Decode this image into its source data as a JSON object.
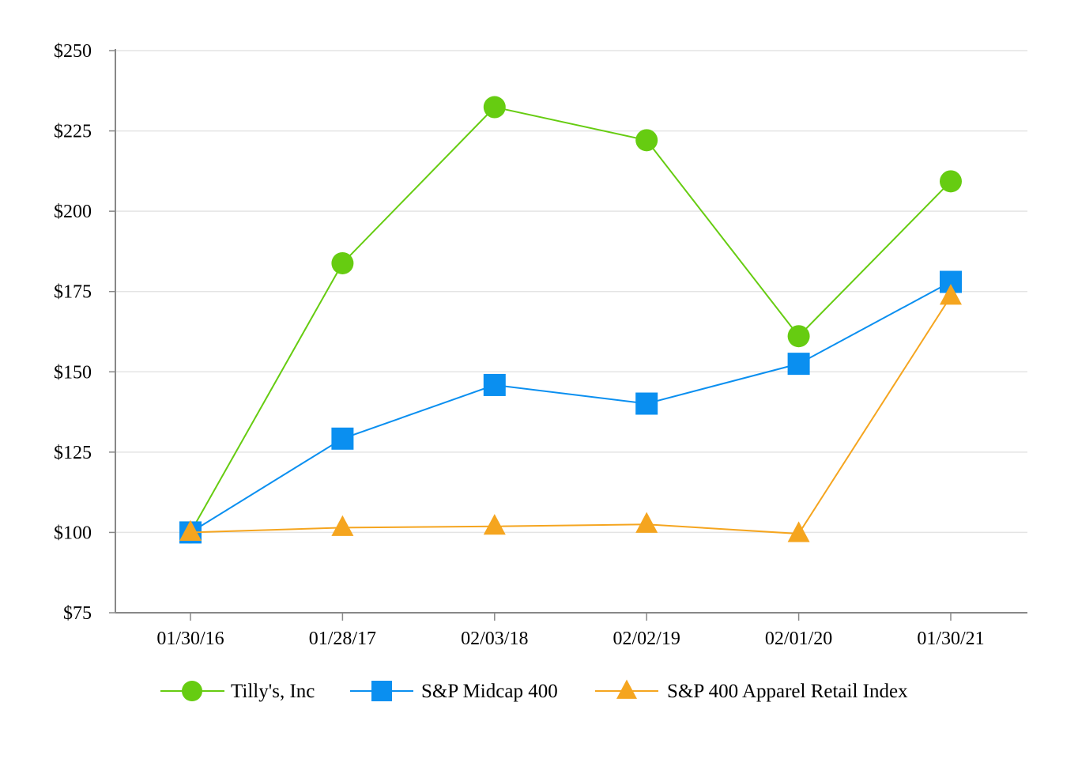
{
  "chart_data": {
    "type": "line",
    "title": "",
    "xlabel": "",
    "ylabel": "",
    "categories": [
      "01/30/16",
      "01/28/17",
      "02/03/18",
      "02/02/19",
      "02/01/20",
      "01/30/21"
    ],
    "ylim": [
      75,
      250
    ],
    "yticks": [
      75,
      100,
      125,
      150,
      175,
      200,
      225,
      250
    ],
    "ytick_labels": [
      "$75",
      "$100",
      "$125",
      "$150",
      "$175",
      "$200",
      "$225",
      "$250"
    ],
    "grid": true,
    "legend_position": "bottom",
    "series": [
      {
        "name": "Tilly's, Inc",
        "marker": "circle",
        "color": "#66cc11",
        "values": [
          100,
          183.8,
          232.4,
          222.1,
          161.1,
          209.3
        ]
      },
      {
        "name": "S&P Midcap 400",
        "marker": "square",
        "color": "#0a8ff0",
        "values": [
          100,
          129.2,
          145.9,
          140.1,
          152.5,
          178.0
        ]
      },
      {
        "name": "S&P 400 Apparel Retail Index",
        "marker": "triangle",
        "color": "#f5a51f",
        "values": [
          100,
          101.5,
          101.9,
          102.5,
          99.6,
          173.5
        ]
      }
    ]
  }
}
